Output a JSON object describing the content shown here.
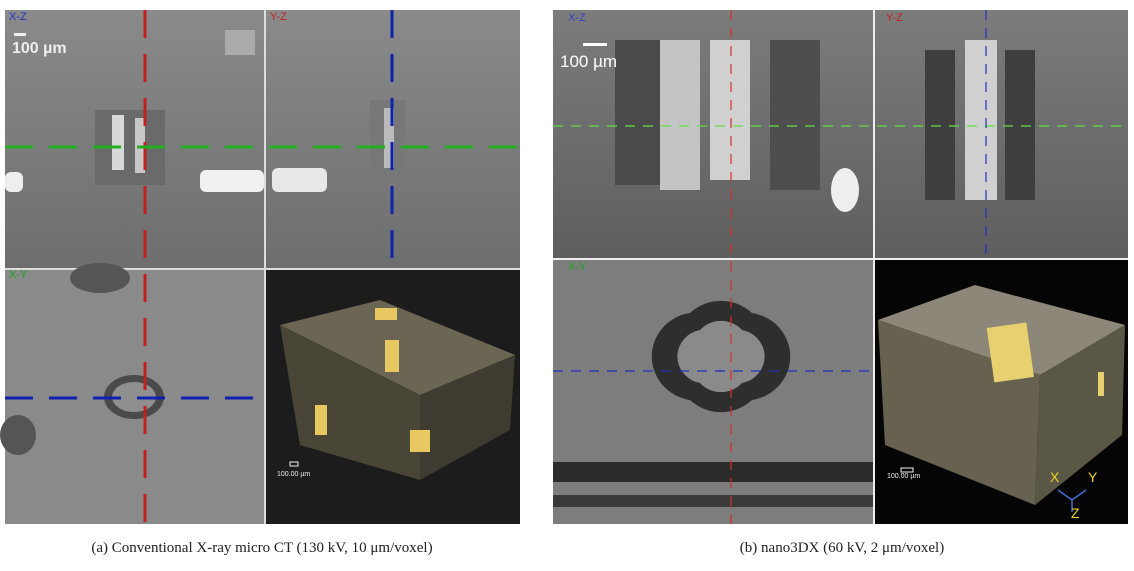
{
  "panels": [
    {
      "views": [
        "X-Z",
        "Y-Z",
        "X-Y"
      ],
      "scale_bar": "100 µm",
      "render_scale": "100.00 µm",
      "caption": "(a) Conventional X-ray micro CT (130 kV, 10 μm/voxel)"
    },
    {
      "views": [
        "X-Z",
        "Y-Z",
        "X-Y"
      ],
      "scale_bar": "100 µm",
      "render_scale": "100.00 µm",
      "axes": [
        "X",
        "Y",
        "Z"
      ],
      "caption": "(b) nano3DX (60 kV, 2 μm/voxel)"
    }
  ]
}
